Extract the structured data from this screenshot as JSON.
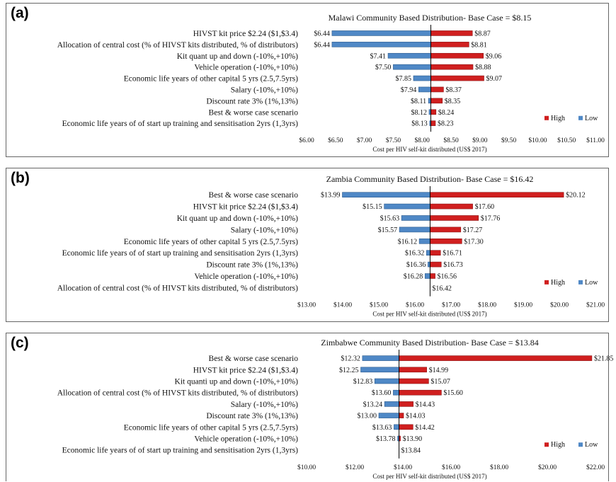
{
  "colors": {
    "high": "#d01f1f",
    "low": "#4f88c6",
    "axis": "#000000"
  },
  "chart_data": [
    {
      "type": "bar",
      "panel_label": "(a)",
      "title": "Malawi Community Based Distribution- Base Case = $8.15",
      "xlabel": "Cost per HIV self-kit distributed (US$ 2017)",
      "base": 8.15,
      "xlim": [
        6.0,
        11.0
      ],
      "xticks": [
        "$6.00",
        "$6.50",
        "$7.00",
        "$7.50",
        "$8.00",
        "$8.50",
        "$9.00",
        "$9.50",
        "$10.00",
        "$10.50",
        "$11.00"
      ],
      "legend": {
        "position": "bottom-right",
        "high": "High",
        "low": "Low"
      },
      "rows": [
        {
          "label": "HIVST kit price $2.24 ($1,$3.4)",
          "low": 6.44,
          "high": 8.87,
          "low_label": "$6.44",
          "high_label": "$8.87"
        },
        {
          "label": "Allocation of central cost (% of HIVST kits distributed, % of distributors)",
          "low": 6.44,
          "high": 8.81,
          "low_label": "$6.44",
          "high_label": "$8.81"
        },
        {
          "label": "Kit quant up and down (-10%,+10%)",
          "low": 7.41,
          "high": 9.06,
          "low_label": "$7.41",
          "high_label": "$9.06"
        },
        {
          "label": "Vehicle operation (-10%,+10%)",
          "low": 7.5,
          "high": 8.88,
          "low_label": "$7.50",
          "high_label": "$8.88"
        },
        {
          "label": "Economic life years of other capital 5 yrs (2.5,7.5yrs)",
          "low": 7.85,
          "high": 9.07,
          "low_label": "$7.85",
          "high_label": "$9.07"
        },
        {
          "label": "Salary (-10%,+10%)",
          "low": 7.94,
          "high": 8.37,
          "low_label": "$7.94",
          "high_label": "$8.37"
        },
        {
          "label": "Discount rate 3% (1%,13%)",
          "low": 8.11,
          "high": 8.35,
          "low_label": "$8.11",
          "high_label": "$8.35"
        },
        {
          "label": "Best & worse case scenario",
          "low": 8.12,
          "high": 8.24,
          "low_label": "$8.12",
          "high_label": "$8.24"
        },
        {
          "label": "Economic life years of of start up training and sensitisation 2yrs (1,3yrs)",
          "low": 8.13,
          "high": 8.23,
          "low_label": "$8.13",
          "high_label": "$8.23"
        }
      ]
    },
    {
      "type": "bar",
      "panel_label": "(b)",
      "title": "Zambia Community Based Distribution- Base Case = $16.42",
      "xlabel": "Cost per HIV self-kit distributed (US$ 2017)",
      "base": 16.42,
      "xlim": [
        13.0,
        21.0
      ],
      "xticks": [
        "$13.00",
        "$14.00",
        "$15.00",
        "$16.00",
        "$17.00",
        "$18.00",
        "$19.00",
        "$20.00",
        "$21.00"
      ],
      "legend": {
        "position": "bottom-right",
        "high": "High",
        "low": "Low"
      },
      "rows": [
        {
          "label": "Best & worse case scenario",
          "low": 13.99,
          "high": 20.12,
          "low_label": "$13.99",
          "high_label": "$20.12"
        },
        {
          "label": "HIVST kit price $2.24 ($1,$3.4)",
          "low": 15.15,
          "high": 17.6,
          "low_label": "$15.15",
          "high_label": "$17.60"
        },
        {
          "label": "Kit quant up and down (-10%,+10%)",
          "low": 15.63,
          "high": 17.76,
          "low_label": "$15.63",
          "high_label": "$17.76"
        },
        {
          "label": "Salary (-10%,+10%)",
          "low": 15.57,
          "high": 17.27,
          "low_label": "$15.57",
          "high_label": "$17.27"
        },
        {
          "label": "Economic life years of other capital 5 yrs (2.5,7.5yrs)",
          "low": 16.12,
          "high": 17.3,
          "low_label": "$16.12",
          "high_label": "$17.30"
        },
        {
          "label": "Economic life years of of start up training and sensitisation 2yrs (1,3yrs)",
          "low": 16.32,
          "high": 16.71,
          "low_label": "$16.32",
          "high_label": "$16.71"
        },
        {
          "label": "Discount rate 3% (1%,13%)",
          "low": 16.36,
          "high": 16.73,
          "low_label": "$16.36",
          "high_label": "$16.73"
        },
        {
          "label": "Vehicle operation (-10%,+10%)",
          "low": 16.28,
          "high": 16.56,
          "low_label": "$16.28",
          "high_label": "$16.56"
        },
        {
          "label": "Allocation of central cost (% of HIVST kits distributed, % of distributors)",
          "low": 16.42,
          "high": 16.42,
          "low_label": "",
          "high_label": "$16.42"
        }
      ]
    },
    {
      "type": "bar",
      "panel_label": "(c)",
      "title": "Zimbabwe Community Based Distribution- Base Case = $13.84",
      "xlabel": "Cost per HIV self-kit distributed (US$ 2017)",
      "base": 13.84,
      "xlim": [
        10.0,
        22.0
      ],
      "xticks": [
        "$10.00",
        "$12.00",
        "$14.00",
        "$16.00",
        "$18.00",
        "$20.00",
        "$22.00"
      ],
      "legend": {
        "position": "bottom-right",
        "high": "High",
        "low": "Low"
      },
      "rows": [
        {
          "label": "Best & worse case scenario",
          "low": 12.32,
          "high": 21.85,
          "low_label": "$12.32",
          "high_label": "$21.85"
        },
        {
          "label": "HIVST kit price $2.24 ($1,$3.4)",
          "low": 12.25,
          "high": 14.99,
          "low_label": "$12.25",
          "high_label": "$14.99"
        },
        {
          "label": "Kit quanti up and down (-10%,+10%)",
          "low": 12.83,
          "high": 15.07,
          "low_label": "$12.83",
          "high_label": "$15.07"
        },
        {
          "label": "Allocation of central cost (% of HIVST kits distributed, % of distributors)",
          "low": 13.6,
          "high": 15.6,
          "low_label": "$13.60",
          "high_label": "$15.60"
        },
        {
          "label": "Salary (-10%,+10%)",
          "low": 13.24,
          "high": 14.43,
          "low_label": "$13.24",
          "high_label": "$14.43"
        },
        {
          "label": "Discount rate 3% (1%,13%)",
          "low": 13.0,
          "high": 14.03,
          "low_label": "$13.00",
          "high_label": "$14.03"
        },
        {
          "label": "Economic life years of other capital 5 yrs (2.5,7.5yrs)",
          "low": 13.63,
          "high": 14.42,
          "low_label": "$13.63",
          "high_label": "$14.42"
        },
        {
          "label": "Vehicle operation (-10%,+10%)",
          "low": 13.78,
          "high": 13.9,
          "low_label": "$13.78",
          "high_label": "$13.90"
        },
        {
          "label": "Economic life years of of start up training and sensitisation 2yrs (1,3yrs)",
          "low": 13.84,
          "high": 13.84,
          "low_label": "",
          "high_label": "$13.84"
        }
      ]
    }
  ]
}
